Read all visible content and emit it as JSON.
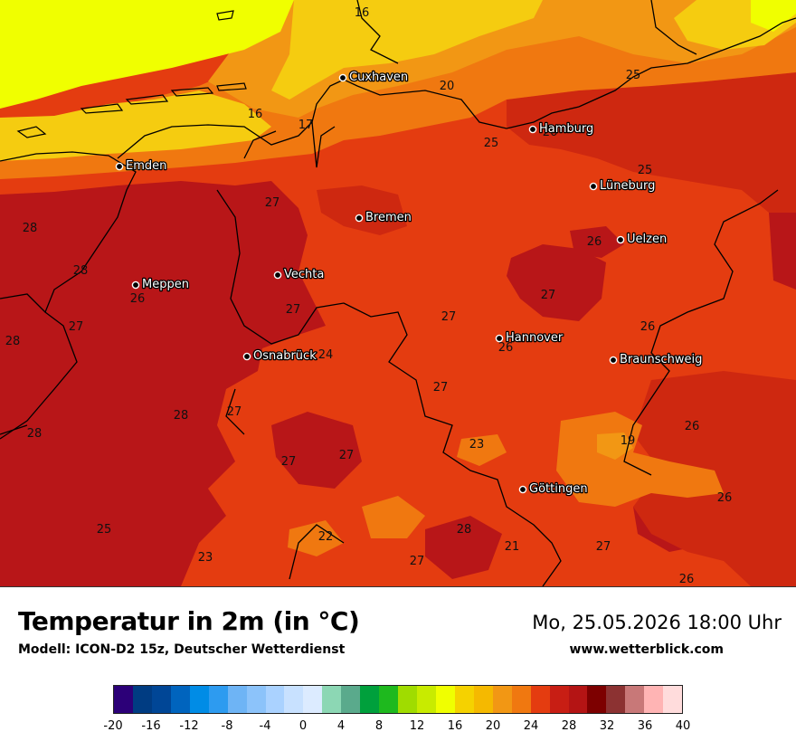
{
  "title": "Temperatur in 2m (in °C)",
  "model": "Modell: ICON-D2 15z, Deutscher Wetterdienst",
  "datetime": "Mo, 25.05.2026 18:00 Uhr",
  "website": "www.wetterblick.com",
  "colors": {
    "t16": "#f0ff00",
    "t18": "#f5cc10",
    "t20": "#f29714",
    "t22": "#f07810",
    "t24": "#e43c10",
    "t26": "#ce2810",
    "t28": "#b81618",
    "border": "#000000",
    "map_bg": "#e43c10"
  },
  "cities": [
    {
      "name": "Cuxhaven"
    },
    {
      "name": "Hamburg"
    },
    {
      "name": "Emden"
    },
    {
      "name": "Lüneburg"
    },
    {
      "name": "Bremen"
    },
    {
      "name": "Uelzen"
    },
    {
      "name": "Vechta"
    },
    {
      "name": "Meppen"
    },
    {
      "name": "Hannover"
    },
    {
      "name": "Osnabrück"
    },
    {
      "name": "Braunschweig"
    },
    {
      "name": "Göttingen"
    }
  ],
  "isotherm_labels": [
    "16",
    "20",
    "25",
    "16",
    "17",
    "26",
    "25",
    "25",
    "27",
    "28",
    "28",
    "26",
    "26",
    "27",
    "27",
    "27",
    "28",
    "24",
    "26",
    "26",
    "28",
    "27",
    "28",
    "27",
    "27",
    "23",
    "19",
    "26",
    "27",
    "27",
    "26",
    "25",
    "22",
    "28",
    "21",
    "27",
    "23",
    "27",
    "26"
  ],
  "legend": {
    "colors": [
      "#2c0078",
      "#003c82",
      "#004696",
      "#0064be",
      "#008ce6",
      "#2d9bf0",
      "#6eb4f5",
      "#8cc3fa",
      "#aad2ff",
      "#c8e1ff",
      "#dcebff",
      "#8cd7b4",
      "#5aaa8c",
      "#00a03c",
      "#1eb91e",
      "#a0dc00",
      "#c8eb00",
      "#f0ff00",
      "#f5d200",
      "#f5b900",
      "#f29714",
      "#f07810",
      "#e43c10",
      "#c81e14",
      "#b41414",
      "#7d0000",
      "#8c3232",
      "#c87878",
      "#ffb4b4",
      "#ffdcdc"
    ],
    "ticks": [
      "-20",
      "-16",
      "-12",
      "-8",
      "-4",
      "0",
      "4",
      "8",
      "12",
      "16",
      "20",
      "24",
      "28",
      "32",
      "36",
      "40"
    ]
  }
}
